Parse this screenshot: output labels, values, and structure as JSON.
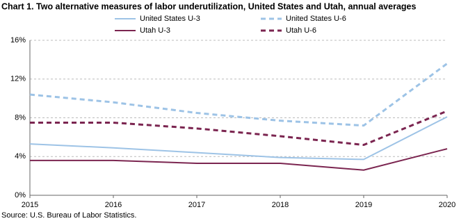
{
  "chart_data": {
    "type": "line",
    "title": "Chart 1. Two alternative measures of labor underutilization, United States and Utah, annual averages",
    "source": "Source: U.S. Bureau of Labor Statistics.",
    "x": [
      2015,
      2016,
      2017,
      2018,
      2019,
      2020
    ],
    "xlim": [
      2015,
      2020
    ],
    "xticks": [
      2015,
      2016,
      2017,
      2018,
      2019,
      2020
    ],
    "ylim": [
      0,
      16
    ],
    "yticks": [
      {
        "value": 0,
        "label": "0%"
      },
      {
        "value": 4,
        "label": "4%"
      },
      {
        "value": 8,
        "label": "8%"
      },
      {
        "value": 12,
        "label": "12%"
      },
      {
        "value": 16,
        "label": "16%"
      }
    ],
    "grid": true,
    "series": [
      {
        "name": "United States U-3",
        "color": "#9dc3e6",
        "style": "solid",
        "values": [
          5.3,
          4.9,
          4.4,
          3.9,
          3.7,
          8.1
        ]
      },
      {
        "name": "United States U-6",
        "color": "#9dc3e6",
        "style": "dashed",
        "values": [
          10.4,
          9.6,
          8.5,
          7.7,
          7.2,
          13.6
        ]
      },
      {
        "name": "Utah U-3",
        "color": "#7b2550",
        "style": "solid",
        "values": [
          3.6,
          3.6,
          3.3,
          3.3,
          2.6,
          4.8
        ]
      },
      {
        "name": "Utah U-6",
        "color": "#7b2550",
        "style": "dashed",
        "values": [
          7.5,
          7.5,
          6.9,
          6.1,
          5.2,
          8.7
        ]
      }
    ]
  }
}
